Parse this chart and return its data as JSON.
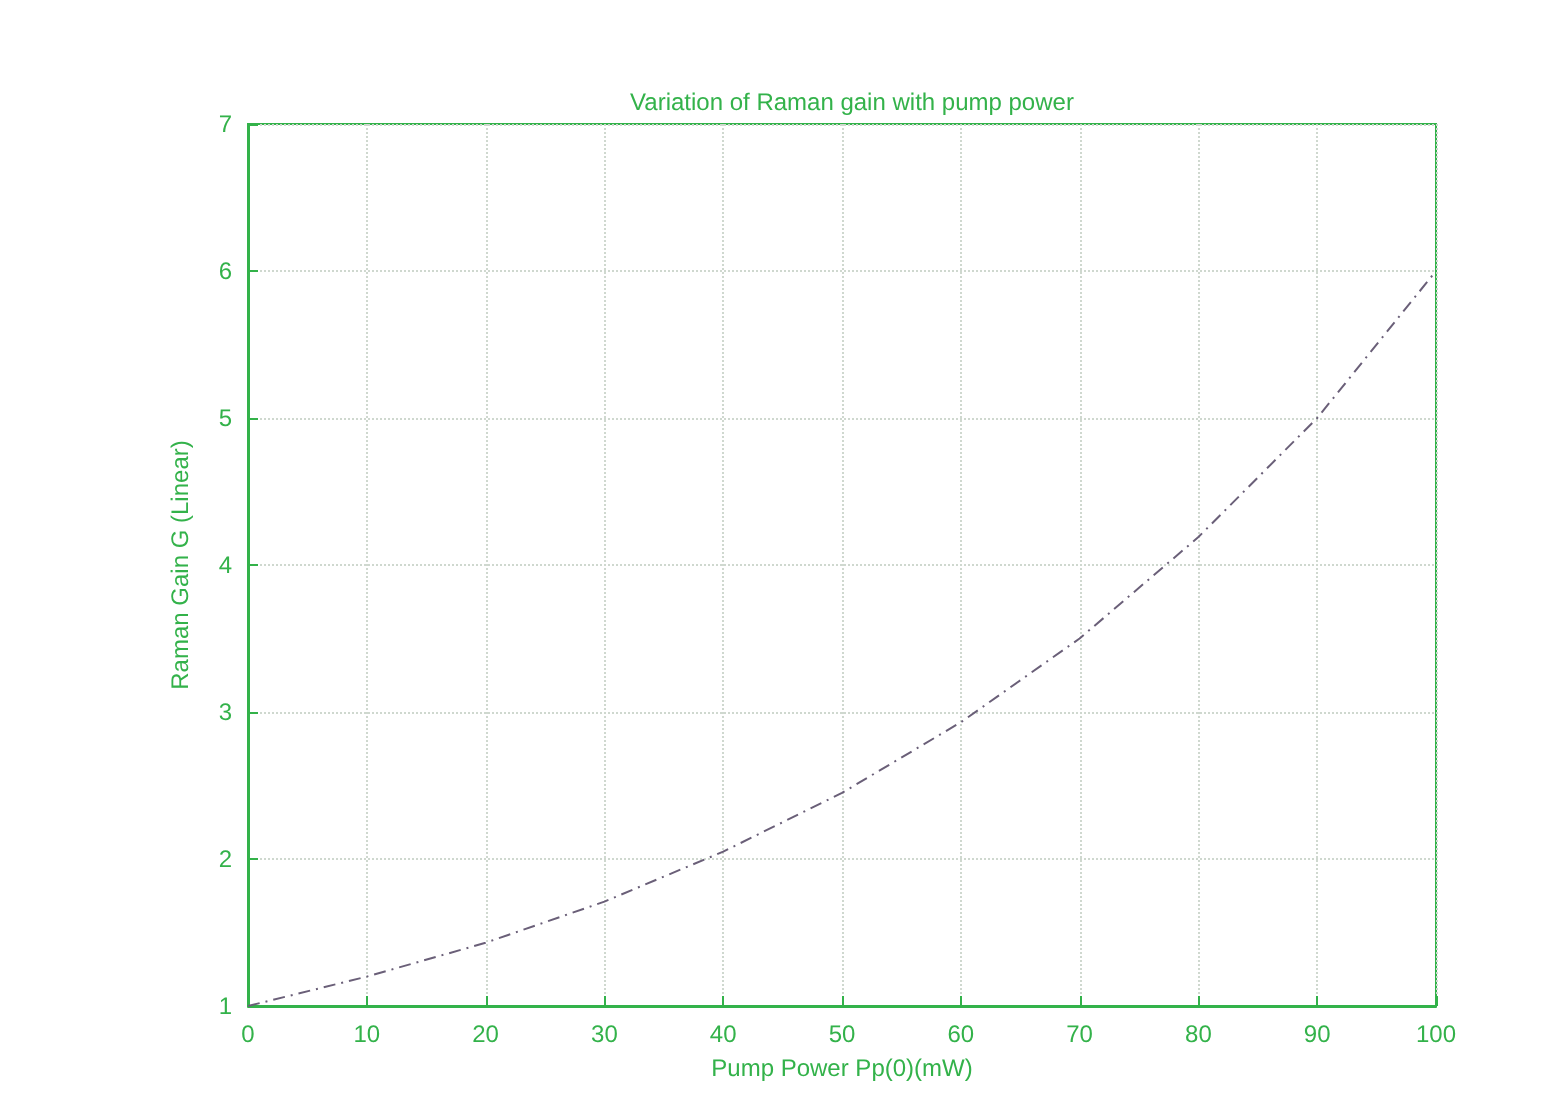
{
  "chart_data": {
    "type": "line",
    "title": "Variation of Raman gain with pump power",
    "xlabel": "Pump Power Pp(0)(mW)",
    "ylabel": "Raman Gain G (Linear)",
    "x": [
      0,
      10,
      20,
      30,
      40,
      50,
      60,
      70,
      80,
      90,
      100
    ],
    "series": [
      {
        "color": "#6a5f78",
        "values": [
          1,
          1.2,
          1.43,
          1.71,
          2.05,
          2.45,
          2.93,
          3.5,
          4.19,
          5.0,
          6.0
        ]
      }
    ],
    "xlim": [
      0,
      100
    ],
    "xticks": [
      0,
      10,
      20,
      30,
      40,
      50,
      60,
      70,
      80,
      90,
      100
    ],
    "ylim": [
      1,
      7
    ],
    "yticks": [
      1,
      2,
      3,
      4,
      5,
      6,
      7
    ],
    "grid": true,
    "marker": "none",
    "line_style": "dashed"
  }
}
